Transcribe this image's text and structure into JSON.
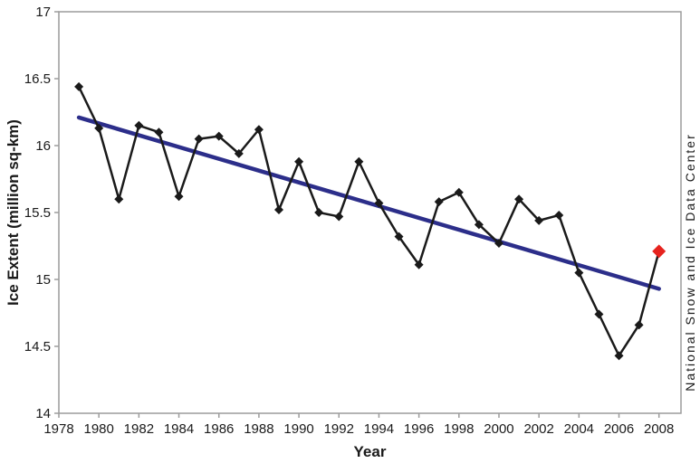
{
  "chart_data": {
    "type": "line",
    "title": "",
    "xlabel": "Year",
    "ylabel": "Ice Extent (million sq-km)",
    "source_label": "National Snow and Ice Data Center",
    "xlim": [
      1978,
      2009.1
    ],
    "ylim": [
      14,
      17
    ],
    "x_ticks": [
      1978,
      1980,
      1982,
      1984,
      1986,
      1988,
      1990,
      1992,
      1994,
      1996,
      1998,
      2000,
      2002,
      2004,
      2006,
      2008
    ],
    "y_ticks": [
      14,
      14.5,
      15,
      15.5,
      16,
      16.5,
      17
    ],
    "grid": false,
    "legend": "none",
    "series": [
      {
        "name": "ice-extent",
        "marker": "diamond",
        "x": [
          1979,
          1980,
          1981,
          1982,
          1983,
          1984,
          1985,
          1986,
          1987,
          1988,
          1989,
          1990,
          1991,
          1992,
          1993,
          1994,
          1995,
          1996,
          1997,
          1998,
          1999,
          2000,
          2001,
          2002,
          2003,
          2004,
          2005,
          2006,
          2007,
          2008
        ],
        "values": [
          16.44,
          16.13,
          15.6,
          16.15,
          16.1,
          15.62,
          16.05,
          16.07,
          15.94,
          16.12,
          15.52,
          15.88,
          15.5,
          15.47,
          15.88,
          15.57,
          15.32,
          15.11,
          15.58,
          15.65,
          15.41,
          15.27,
          15.6,
          15.44,
          15.48,
          15.05,
          14.74,
          14.43,
          14.66,
          15.21
        ]
      }
    ],
    "highlight_point": {
      "x": 2008,
      "value": 15.21
    },
    "trend_line": {
      "x_start": 1979,
      "value_start": 16.21,
      "x_end": 2008,
      "value_end": 14.93
    },
    "colors": {
      "series": "#1a1a1a",
      "trend": "#2c2e8a",
      "highlight": "#e6231e",
      "axis": "#9c9c9c",
      "text": "#1a1a1a"
    }
  }
}
